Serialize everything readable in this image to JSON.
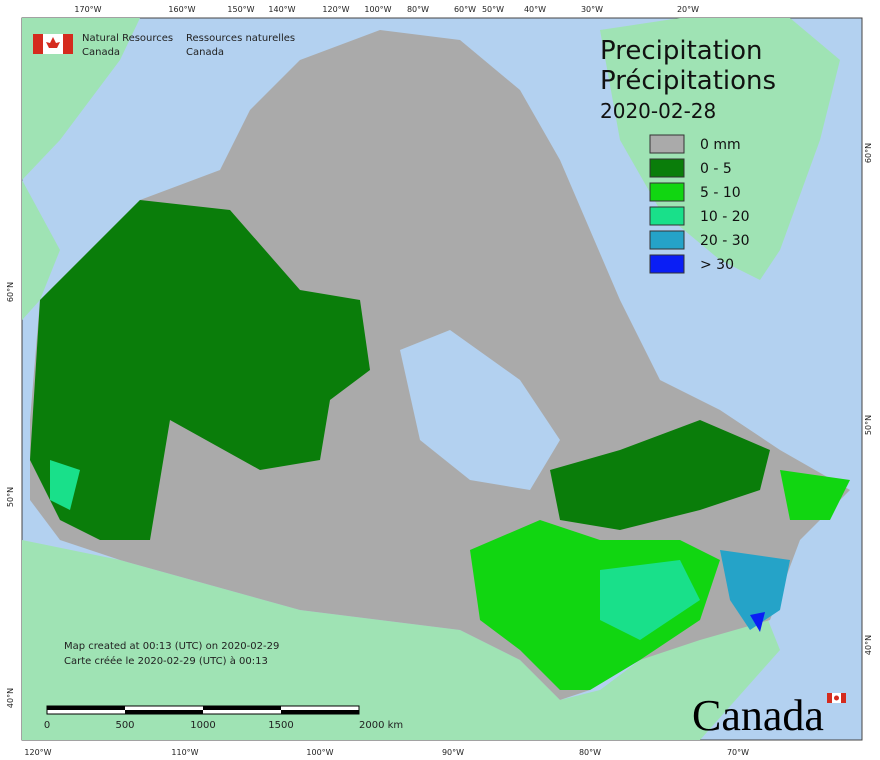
{
  "header": {
    "org_en": [
      "Natural Resources",
      "Canada"
    ],
    "org_fr": [
      "Ressources naturelles",
      "Canada"
    ]
  },
  "title": [
    "Precipitation",
    "Précipitations",
    "2020-02-28"
  ],
  "legend": [
    {
      "label": "0 mm",
      "color": "#aaaaaa"
    },
    {
      "label": "0 - 5",
      "color": "#0a7d0a"
    },
    {
      "label": "5 - 10",
      "color": "#11d611"
    },
    {
      "label": "10 - 20",
      "color": "#19e08a"
    },
    {
      "label": "20 - 30",
      "color": "#25a3c8"
    },
    {
      "label": "> 30",
      "color": "#0a1ef5"
    }
  ],
  "graticule": {
    "top": [
      "170°W",
      "160°W",
      "150°W",
      "140°W",
      "120°W",
      "100°W",
      "80°W",
      "60°W",
      "50°W",
      "40°W",
      "30°W",
      "20°W"
    ],
    "bottom": [
      "120°W",
      "110°W",
      "100°W",
      "90°W",
      "80°W",
      "70°W"
    ],
    "left": [
      "60°N",
      "50°N",
      "40°N"
    ],
    "right": [
      "60°N",
      "50°N",
      "40°N"
    ]
  },
  "footer": [
    "Map created at 00:13 (UTC) on 2020-02-29",
    "Carte créée le 2020-02-29 (UTC) à 00:13"
  ],
  "scale": [
    "0",
    "500",
    "1000",
    "1500",
    "2000 km"
  ],
  "wordmark": "Canada"
}
